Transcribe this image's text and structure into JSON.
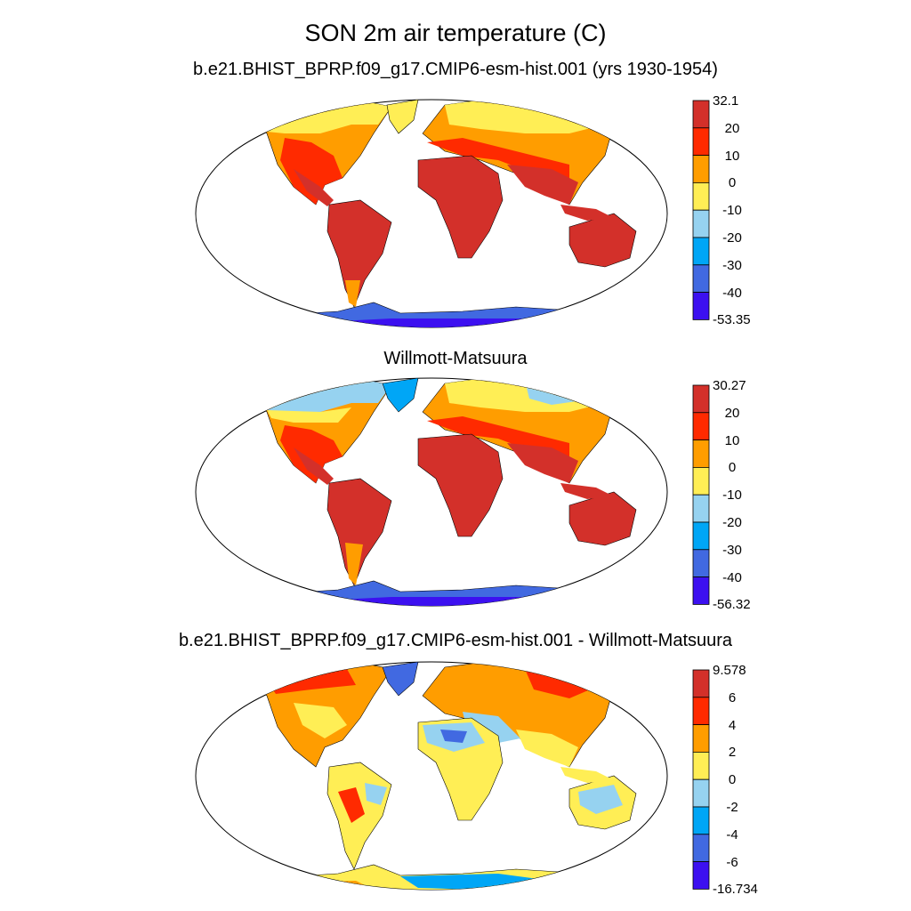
{
  "title": "SON 2m air temperature (C)",
  "colors": {
    "c9": "#d3302a",
    "c8": "#ff2a00",
    "c7": "#ff9d00",
    "c6": "#ffee55",
    "c5": "#96d2f0",
    "c4": "#00a6f6",
    "c3": "#4169e1",
    "c2": "#3c10f0",
    "land_ocean_border": "#000000"
  },
  "panels": [
    {
      "title": "b.e21.BHIST_BPRP.f09_g17.CMIP6-esm-hist.001 (yrs 1930-1954)",
      "colorbar_labels": [
        "32.1",
        "20",
        "10",
        "0",
        "-10",
        "-20",
        "-30",
        "-40",
        "-53.35"
      ]
    },
    {
      "title": "Willmott-Matsuura",
      "colorbar_labels": [
        "30.27",
        "20",
        "10",
        "0",
        "-10",
        "-20",
        "-30",
        "-40",
        "-56.32"
      ]
    },
    {
      "title": "b.e21.BHIST_BPRP.f09_g17.CMIP6-esm-hist.001 - Willmott-Matsuura",
      "colorbar_labels": [
        "9.578",
        "6",
        "4",
        "2",
        "0",
        "-2",
        "-4",
        "-6",
        "-16.734"
      ]
    }
  ]
}
